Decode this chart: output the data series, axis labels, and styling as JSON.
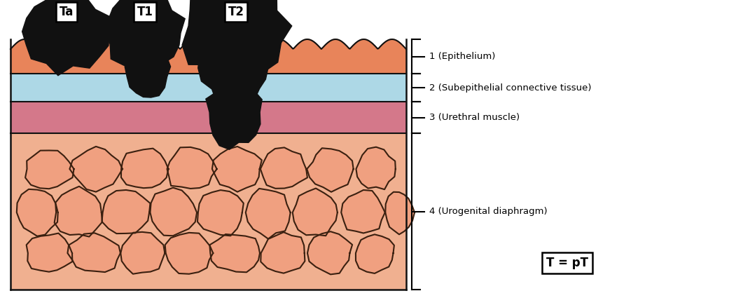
{
  "bg_color": "#ffffff",
  "layer_colors": {
    "epithelium": "#E8845A",
    "subepithelial": "#ADD8E6",
    "muscle": "#D4788A",
    "urogenital_bg": "#F0B090",
    "urogenital_cell": "#F0A080",
    "urogenital_cell_edge": "#3a2010"
  },
  "tumor_color": "#111111",
  "outline_color": "#111111",
  "labels": {
    "Ta": "Ta",
    "T1": "T1",
    "T2": "T2",
    "eq": "T = pT"
  },
  "annotations": [
    "1 (Epithelium)",
    "2 (Subepithelial connective tissue)",
    "3 (Urethral muscle)",
    "4 (Urogenital diaphragm)"
  ]
}
